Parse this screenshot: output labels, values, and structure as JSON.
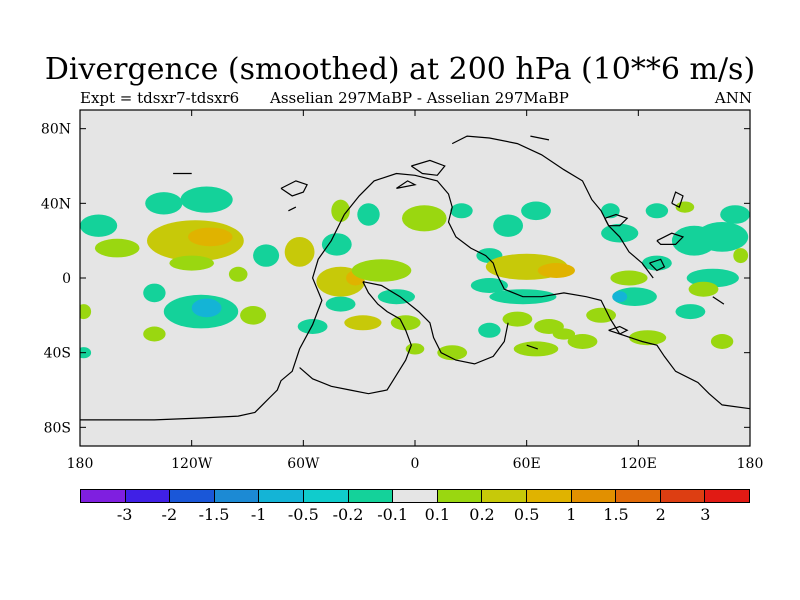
{
  "title": "Divergence (smoothed) at 200 hPa (10**6 m/s)",
  "subtitle_left": "Expt = tdsxr7-tdsxr6",
  "subtitle_center": "Asselian 297MaBP - Asselian 297MaBP",
  "subtitle_right": "ANN",
  "lat_ticks": [
    {
      "label": "80N",
      "value": 80
    },
    {
      "label": "40N",
      "value": 40
    },
    {
      "label": "0",
      "value": 0
    },
    {
      "label": "40S",
      "value": -40
    },
    {
      "label": "80S",
      "value": -80
    }
  ],
  "lon_ticks": [
    {
      "label": "180",
      "value": -180
    },
    {
      "label": "120W",
      "value": -120
    },
    {
      "label": "60W",
      "value": -60
    },
    {
      "label": "0",
      "value": 0
    },
    {
      "label": "60E",
      "value": 60
    },
    {
      "label": "120E",
      "value": 120
    },
    {
      "label": "180",
      "value": 180
    }
  ],
  "colorbar": {
    "colors": [
      "#7f1fe0",
      "#4020e6",
      "#1a57d8",
      "#1c8ad4",
      "#14b4d6",
      "#10cccc",
      "#14d29a",
      "#e5e5e5",
      "#9ad710",
      "#c7c909",
      "#e0b300",
      "#e29000",
      "#e06a08",
      "#dd3e12",
      "#e11a14"
    ],
    "labels": [
      "-3",
      "-2",
      "-1.5",
      "-1",
      "-0.5",
      "-0.2",
      "-0.1",
      "0.1",
      "0.2",
      "0.5",
      "1",
      "1.5",
      "2",
      "3"
    ]
  },
  "chart_data": {
    "type": "map",
    "title": "Divergence (smoothed) at 200 hPa (10**6 m/s)",
    "projection": "cylindrical equidistant",
    "lon_range": [
      -180,
      180
    ],
    "lat_range": [
      -90,
      90
    ],
    "background_color": "#e5e5e5",
    "features": [
      {
        "lon": -170,
        "lat": 28,
        "rx": 10,
        "ry": 6,
        "value": -0.15
      },
      {
        "lon": -135,
        "lat": 40,
        "rx": 10,
        "ry": 6,
        "value": -0.15
      },
      {
        "lon": -112,
        "lat": 42,
        "rx": 14,
        "ry": 7,
        "value": -0.15
      },
      {
        "lon": -118,
        "lat": 20,
        "rx": 26,
        "ry": 11,
        "value": 0.3
      },
      {
        "lon": -110,
        "lat": 22,
        "rx": 12,
        "ry": 5,
        "value": 0.7
      },
      {
        "lon": -160,
        "lat": 16,
        "rx": 12,
        "ry": 5,
        "value": 0.15
      },
      {
        "lon": -120,
        "lat": 8,
        "rx": 12,
        "ry": 4,
        "value": 0.15
      },
      {
        "lon": -95,
        "lat": 2,
        "rx": 5,
        "ry": 4,
        "value": 0.15
      },
      {
        "lon": -140,
        "lat": -8,
        "rx": 6,
        "ry": 5,
        "value": -0.15
      },
      {
        "lon": -115,
        "lat": -18,
        "rx": 20,
        "ry": 9,
        "value": -0.15
      },
      {
        "lon": -112,
        "lat": -16,
        "rx": 8,
        "ry": 5,
        "value": -0.5
      },
      {
        "lon": -87,
        "lat": -20,
        "rx": 7,
        "ry": 5,
        "value": 0.15
      },
      {
        "lon": -178,
        "lat": -18,
        "rx": 4,
        "ry": 4,
        "value": 0.15
      },
      {
        "lon": -140,
        "lat": -30,
        "rx": 6,
        "ry": 4,
        "value": 0.15
      },
      {
        "lon": -178,
        "lat": -40,
        "rx": 4,
        "ry": 3,
        "value": -0.15
      },
      {
        "lon": -80,
        "lat": 12,
        "rx": 7,
        "ry": 6,
        "value": -0.15
      },
      {
        "lon": -62,
        "lat": 14,
        "rx": 8,
        "ry": 8,
        "value": 0.3
      },
      {
        "lon": -42,
        "lat": 18,
        "rx": 8,
        "ry": 6,
        "value": -0.15
      },
      {
        "lon": -40,
        "lat": -2,
        "rx": 13,
        "ry": 8,
        "value": 0.3
      },
      {
        "lon": -32,
        "lat": 0,
        "rx": 5,
        "ry": 4,
        "value": 0.8
      },
      {
        "lon": -18,
        "lat": 4,
        "rx": 16,
        "ry": 6,
        "value": 0.15
      },
      {
        "lon": -40,
        "lat": -14,
        "rx": 8,
        "ry": 4,
        "value": -0.15
      },
      {
        "lon": -55,
        "lat": -26,
        "rx": 8,
        "ry": 4,
        "value": -0.15
      },
      {
        "lon": -28,
        "lat": -24,
        "rx": 10,
        "ry": 4,
        "value": 0.3
      },
      {
        "lon": -5,
        "lat": -24,
        "rx": 8,
        "ry": 4,
        "value": 0.15
      },
      {
        "lon": -10,
        "lat": -10,
        "rx": 10,
        "ry": 4,
        "value": -0.15
      },
      {
        "lon": -40,
        "lat": 36,
        "rx": 5,
        "ry": 6,
        "value": 0.15
      },
      {
        "lon": -25,
        "lat": 34,
        "rx": 6,
        "ry": 6,
        "value": -0.15
      },
      {
        "lon": 5,
        "lat": 32,
        "rx": 12,
        "ry": 7,
        "value": 0.15
      },
      {
        "lon": 25,
        "lat": 36,
        "rx": 6,
        "ry": 4,
        "value": -0.15
      },
      {
        "lon": 40,
        "lat": 12,
        "rx": 7,
        "ry": 4,
        "value": -0.15
      },
      {
        "lon": 40,
        "lat": -4,
        "rx": 10,
        "ry": 4,
        "value": -0.15
      },
      {
        "lon": 50,
        "lat": 28,
        "rx": 8,
        "ry": 6,
        "value": -0.15
      },
      {
        "lon": 65,
        "lat": 36,
        "rx": 8,
        "ry": 5,
        "value": -0.15
      },
      {
        "lon": 60,
        "lat": 6,
        "rx": 22,
        "ry": 7,
        "value": 0.3
      },
      {
        "lon": 76,
        "lat": 4,
        "rx": 10,
        "ry": 4,
        "value": 0.7
      },
      {
        "lon": 58,
        "lat": -10,
        "rx": 18,
        "ry": 4,
        "value": -0.15
      },
      {
        "lon": 55,
        "lat": -22,
        "rx": 8,
        "ry": 4,
        "value": 0.15
      },
      {
        "lon": 40,
        "lat": -28,
        "rx": 6,
        "ry": 4,
        "value": -0.15
      },
      {
        "lon": 72,
        "lat": -26,
        "rx": 8,
        "ry": 4,
        "value": 0.15
      },
      {
        "lon": 80,
        "lat": -30,
        "rx": 6,
        "ry": 3,
        "value": 0.15
      },
      {
        "lon": 65,
        "lat": -38,
        "rx": 12,
        "ry": 4,
        "value": 0.15
      },
      {
        "lon": 20,
        "lat": -40,
        "rx": 8,
        "ry": 4,
        "value": 0.15
      },
      {
        "lon": 0,
        "lat": -38,
        "rx": 5,
        "ry": 3,
        "value": 0.15
      },
      {
        "lon": 90,
        "lat": -34,
        "rx": 8,
        "ry": 4,
        "value": 0.15
      },
      {
        "lon": 110,
        "lat": 24,
        "rx": 10,
        "ry": 5,
        "value": -0.15
      },
      {
        "lon": 115,
        "lat": 0,
        "rx": 10,
        "ry": 4,
        "value": 0.15
      },
      {
        "lon": 118,
        "lat": -10,
        "rx": 12,
        "ry": 5,
        "value": -0.15
      },
      {
        "lon": 110,
        "lat": -10,
        "rx": 4,
        "ry": 3,
        "value": -0.5
      },
      {
        "lon": 130,
        "lat": 8,
        "rx": 8,
        "ry": 4,
        "value": -0.15
      },
      {
        "lon": 100,
        "lat": -20,
        "rx": 8,
        "ry": 4,
        "value": 0.15
      },
      {
        "lon": 125,
        "lat": -32,
        "rx": 10,
        "ry": 4,
        "value": 0.15
      },
      {
        "lon": 150,
        "lat": 20,
        "rx": 12,
        "ry": 8,
        "value": -0.15
      },
      {
        "lon": 165,
        "lat": 22,
        "rx": 14,
        "ry": 8,
        "value": -0.15
      },
      {
        "lon": 172,
        "lat": 34,
        "rx": 8,
        "ry": 5,
        "value": -0.15
      },
      {
        "lon": 160,
        "lat": 0,
        "rx": 14,
        "ry": 5,
        "value": -0.15
      },
      {
        "lon": 155,
        "lat": -6,
        "rx": 8,
        "ry": 4,
        "value": 0.15
      },
      {
        "lon": 175,
        "lat": 12,
        "rx": 4,
        "ry": 4,
        "value": 0.15
      },
      {
        "lon": 148,
        "lat": -18,
        "rx": 8,
        "ry": 4,
        "value": -0.15
      },
      {
        "lon": 165,
        "lat": -34,
        "rx": 6,
        "ry": 4,
        "value": 0.15
      },
      {
        "lon": 130,
        "lat": 36,
        "rx": 6,
        "ry": 4,
        "value": -0.15
      },
      {
        "lon": 105,
        "lat": 36,
        "rx": 5,
        "ry": 4,
        "value": -0.15
      },
      {
        "lon": 145,
        "lat": 38,
        "rx": 5,
        "ry": 3,
        "value": 0.15
      }
    ],
    "coastlines": [
      [
        [
          -38,
          34
        ],
        [
          -45,
          20
        ],
        [
          -52,
          10
        ],
        [
          -55,
          0
        ],
        [
          -50,
          -12
        ],
        [
          -55,
          -25
        ],
        [
          -62,
          -38
        ],
        [
          -66,
          -50
        ],
        [
          -72,
          -55
        ],
        [
          -74,
          -60
        ],
        [
          -78,
          -64
        ],
        [
          -82,
          -68
        ],
        [
          -86,
          -72
        ],
        [
          -95,
          -74
        ],
        [
          -115,
          -75
        ],
        [
          -140,
          -76
        ],
        [
          -165,
          -76
        ],
        [
          -180,
          -76
        ]
      ],
      [
        [
          -38,
          34
        ],
        [
          -30,
          44
        ],
        [
          -22,
          52
        ],
        [
          -10,
          56
        ],
        [
          0,
          55
        ],
        [
          12,
          52
        ],
        [
          18,
          45
        ],
        [
          20,
          38
        ],
        [
          18,
          30
        ],
        [
          22,
          22
        ],
        [
          30,
          16
        ],
        [
          38,
          12
        ],
        [
          42,
          8
        ],
        [
          44,
          2
        ],
        [
          48,
          -6
        ],
        [
          58,
          -10
        ],
        [
          68,
          -10
        ],
        [
          80,
          -8
        ],
        [
          92,
          -10
        ],
        [
          100,
          -12
        ],
        [
          105,
          -22
        ],
        [
          110,
          -30
        ],
        [
          122,
          -34
        ],
        [
          130,
          -36
        ],
        [
          134,
          -42
        ],
        [
          140,
          -50
        ],
        [
          152,
          -56
        ],
        [
          158,
          -62
        ],
        [
          165,
          -68
        ],
        [
          180,
          -70
        ]
      ],
      [
        [
          -62,
          -48
        ],
        [
          -55,
          -54
        ],
        [
          -45,
          -58
        ],
        [
          -35,
          -60
        ],
        [
          -25,
          -62
        ],
        [
          -15,
          -60
        ],
        [
          -10,
          -52
        ],
        [
          -5,
          -44
        ],
        [
          -2,
          -36
        ],
        [
          -5,
          -28
        ],
        [
          -8,
          -22
        ],
        [
          -15,
          -18
        ],
        [
          -20,
          -14
        ],
        [
          -25,
          -8
        ],
        [
          -28,
          -2
        ]
      ],
      [
        [
          -28,
          -2
        ],
        [
          -18,
          -4
        ],
        [
          -8,
          -10
        ],
        [
          2,
          -18
        ],
        [
          8,
          -24
        ],
        [
          10,
          -32
        ],
        [
          14,
          -40
        ],
        [
          22,
          -44
        ],
        [
          32,
          -46
        ],
        [
          42,
          -42
        ],
        [
          48,
          -34
        ],
        [
          50,
          -24
        ]
      ],
      [
        [
          20,
          72
        ],
        [
          28,
          76
        ],
        [
          40,
          75
        ],
        [
          55,
          72
        ],
        [
          68,
          66
        ],
        [
          80,
          58
        ],
        [
          90,
          52
        ],
        [
          95,
          42
        ],
        [
          100,
          36
        ],
        [
          104,
          28
        ],
        [
          110,
          22
        ],
        [
          115,
          14
        ],
        [
          122,
          8
        ],
        [
          128,
          0
        ]
      ],
      [
        [
          62,
          76
        ],
        [
          72,
          74
        ]
      ],
      [
        [
          -2,
          60
        ],
        [
          8,
          63
        ],
        [
          16,
          60
        ],
        [
          12,
          55
        ],
        [
          4,
          56
        ],
        [
          -2,
          60
        ]
      ],
      [
        [
          -10,
          48
        ],
        [
          -4,
          52
        ],
        [
          0,
          50
        ],
        [
          -10,
          48
        ]
      ],
      [
        [
          102,
          32
        ],
        [
          108,
          34
        ],
        [
          114,
          32
        ],
        [
          110,
          28
        ],
        [
          104,
          28
        ],
        [
          102,
          32
        ]
      ],
      [
        [
          130,
          20
        ],
        [
          138,
          24
        ],
        [
          144,
          22
        ],
        [
          140,
          18
        ],
        [
          132,
          18
        ],
        [
          130,
          20
        ]
      ],
      [
        [
          126,
          8
        ],
        [
          132,
          10
        ],
        [
          134,
          6
        ],
        [
          130,
          4
        ],
        [
          126,
          8
        ]
      ],
      [
        [
          104,
          -28
        ],
        [
          110,
          -30
        ],
        [
          114,
          -28
        ],
        [
          110,
          -26
        ],
        [
          104,
          -28
        ]
      ],
      [
        [
          -72,
          48
        ],
        [
          -64,
          52
        ],
        [
          -58,
          50
        ],
        [
          -60,
          46
        ],
        [
          -66,
          44
        ],
        [
          -72,
          48
        ]
      ],
      [
        [
          -68,
          36
        ],
        [
          -64,
          38
        ]
      ],
      [
        [
          138,
          40
        ],
        [
          140,
          46
        ],
        [
          144,
          44
        ],
        [
          142,
          38
        ],
        [
          138,
          40
        ]
      ],
      [
        [
          160,
          -10
        ],
        [
          166,
          -14
        ]
      ],
      [
        [
          60,
          -36
        ],
        [
          66,
          -38
        ]
      ],
      [
        [
          -130,
          56
        ],
        [
          -120,
          56
        ]
      ]
    ]
  }
}
